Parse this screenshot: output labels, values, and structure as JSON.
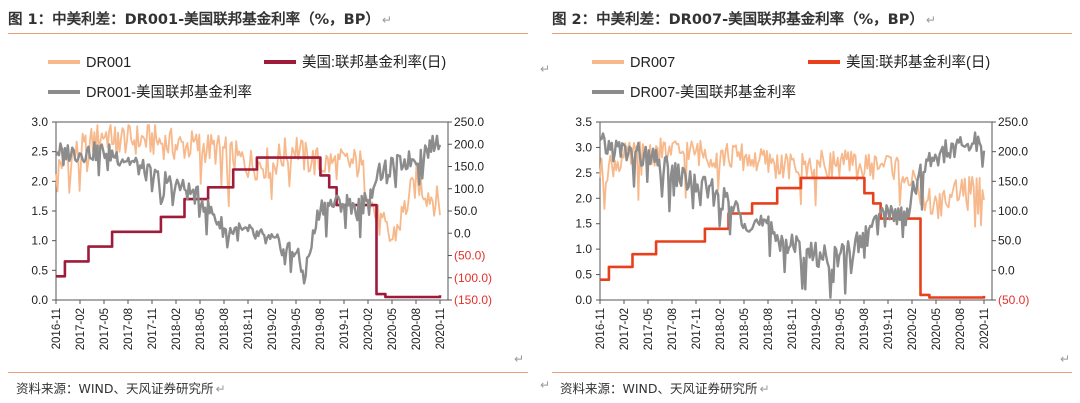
{
  "colors": {
    "dr": "#f7b98c",
    "fed1": "#9e1b3a",
    "fed2": "#e8401c",
    "spread": "#8c8c8c",
    "neg": "#e3312b",
    "rule": "#e6a07a"
  },
  "glyphs": {
    "paragraph_mark": "↵"
  },
  "panels": [
    {
      "title": "图 1：中美利差：DR001-美国联邦基金利率（%，BP）",
      "source": "资料来源：WIND、天风证券研究所",
      "chart_data": {
        "type": "line",
        "series": [
          {
            "name": "DR001",
            "axis": "left",
            "color": "#f7b98c",
            "x": [
              "2016-11",
              "2017-02",
              "2017-05",
              "2017-08",
              "2017-11",
              "2018-02",
              "2018-05",
              "2018-08",
              "2018-11",
              "2019-02",
              "2019-05",
              "2019-06",
              "2019-08",
              "2019-11",
              "2020-01",
              "2020-03",
              "2020-05",
              "2020-08",
              "2020-11"
            ],
            "y": [
              2.3,
              2.5,
              2.8,
              2.7,
              2.7,
              2.6,
              2.6,
              2.5,
              2.3,
              2.3,
              2.6,
              2.4,
              2.3,
              2.3,
              2.3,
              1.4,
              1.0,
              2.0,
              1.6
            ]
          },
          {
            "name": "美国:联邦基金利率(日)",
            "axis": "left",
            "color": "#9e1b3a",
            "x": [
              "2016-11",
              "2016-12",
              "2017-03",
              "2017-06",
              "2017-12",
              "2018-03",
              "2018-06",
              "2018-09",
              "2018-12",
              "2019-07",
              "2019-08",
              "2019-09",
              "2019-10",
              "2020-03",
              "2020-04",
              "2020-11"
            ],
            "y": [
              0.4,
              0.65,
              0.9,
              1.15,
              1.4,
              1.7,
              1.9,
              2.2,
              2.4,
              2.4,
              2.1,
              1.9,
              1.6,
              0.1,
              0.05,
              0.08
            ]
          },
          {
            "name": "DR001-美国联邦基金利率",
            "axis": "right",
            "color": "#8c8c8c",
            "x": [
              "2016-11",
              "2017-02",
              "2017-05",
              "2017-08",
              "2017-11",
              "2018-02",
              "2018-05",
              "2018-08",
              "2018-11",
              "2019-02",
              "2019-05",
              "2019-06",
              "2019-08",
              "2019-11",
              "2020-01",
              "2020-03",
              "2020-05",
              "2020-08",
              "2020-11"
            ],
            "y": [
              185,
              180,
              185,
              165,
              130,
              110,
              80,
              10,
              0,
              -20,
              -40,
              -100,
              60,
              70,
              60,
              130,
              150,
              170,
              210
            ]
          }
        ],
        "x_ticks": [
          "2016-11",
          "2017-02",
          "2017-05",
          "2017-08",
          "2017-11",
          "2018-02",
          "2018-05",
          "2018-08",
          "2018-11",
          "2019-02",
          "2019-05",
          "2019-08",
          "2019-11",
          "2020-02",
          "2020-05",
          "2020-08",
          "2020-11"
        ],
        "y_left_ticks": [
          "0.0",
          "0.5",
          "1.0",
          "1.5",
          "2.0",
          "2.5",
          "3.0"
        ],
        "y_right_ticks": [
          "(150.0)",
          "(100.0)",
          "(50.0)",
          "0.0",
          "50.0",
          "100.0",
          "150.0",
          "200.0",
          "250.0"
        ],
        "ylim_left": [
          0,
          3
        ],
        "ylim_right": [
          -150,
          250
        ],
        "legend": "top"
      }
    },
    {
      "title": "图 2：中美利差：DR007-美国联邦基金利率（%，BP）",
      "source": "资料来源：WIND、天风证券研究所",
      "chart_data": {
        "type": "line",
        "series": [
          {
            "name": "DR007",
            "axis": "left",
            "color": "#f7b98c",
            "x": [
              "2016-11",
              "2017-02",
              "2017-05",
              "2017-08",
              "2017-11",
              "2018-02",
              "2018-05",
              "2018-08",
              "2018-11",
              "2019-02",
              "2019-05",
              "2019-08",
              "2019-11",
              "2020-01",
              "2020-03",
              "2020-05",
              "2020-08",
              "2020-11"
            ],
            "y": [
              2.5,
              2.8,
              2.9,
              2.9,
              2.9,
              2.85,
              2.8,
              2.7,
              2.6,
              2.65,
              2.7,
              2.6,
              2.7,
              2.5,
              2.1,
              1.8,
              2.2,
              2.2
            ]
          },
          {
            "name": "美国:联邦基金利率(日)",
            "axis": "left",
            "color": "#e8401c",
            "x": [
              "2016-11",
              "2016-12",
              "2017-03",
              "2017-06",
              "2017-12",
              "2018-03",
              "2018-06",
              "2018-09",
              "2018-12",
              "2019-07",
              "2019-08",
              "2019-09",
              "2019-10",
              "2020-03",
              "2020-04",
              "2020-11"
            ],
            "y": [
              0.4,
              0.65,
              0.9,
              1.15,
              1.4,
              1.7,
              1.9,
              2.2,
              2.4,
              2.4,
              2.1,
              1.9,
              1.6,
              0.1,
              0.05,
              0.08
            ]
          },
          {
            "name": "DR007-美国联邦基金利率",
            "axis": "right",
            "color": "#8c8c8c",
            "x": [
              "2016-11",
              "2017-02",
              "2017-05",
              "2017-08",
              "2017-11",
              "2018-02",
              "2018-05",
              "2018-08",
              "2018-11",
              "2019-02",
              "2019-05",
              "2019-08",
              "2019-11",
              "2020-01",
              "2020-03",
              "2020-05",
              "2020-08",
              "2020-11"
            ],
            "y": [
              210,
              200,
              190,
              165,
              145,
              125,
              90,
              70,
              40,
              25,
              20,
              55,
              100,
              90,
              160,
              195,
              205,
              220
            ]
          }
        ],
        "x_ticks": [
          "2016-11",
          "2017-02",
          "2017-05",
          "2017-08",
          "2017-11",
          "2018-02",
          "2018-05",
          "2018-08",
          "2018-11",
          "2019-02",
          "2019-05",
          "2019-08",
          "2019-11",
          "2020-02",
          "2020-05",
          "2020-08",
          "2020-11"
        ],
        "y_left_ticks": [
          "0.0",
          "0.5",
          "1.0",
          "1.5",
          "2.0",
          "2.5",
          "3.0",
          "3.5"
        ],
        "y_right_ticks": [
          "(50.0)",
          "0.0",
          "50.0",
          "100.0",
          "150.0",
          "200.0",
          "250.0"
        ],
        "ylim_left": [
          0,
          3.5
        ],
        "ylim_right": [
          -50,
          250
        ],
        "legend": "top"
      }
    }
  ]
}
